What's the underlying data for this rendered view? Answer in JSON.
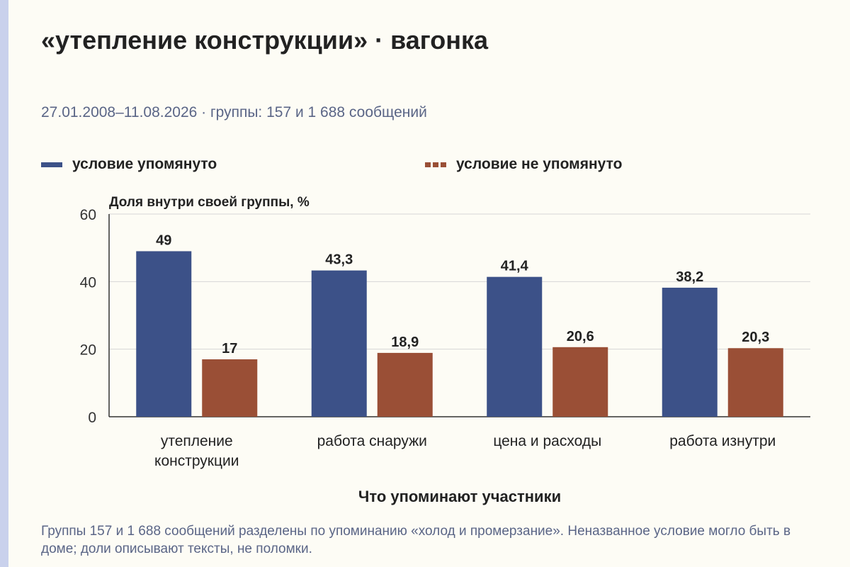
{
  "title": "«утепление конструкции» · вагонка",
  "subtitle": "27.01.2008–11.08.2026 · группы: 157 и 1 688 сообщений",
  "footnote": "Группы 157 и 1 688 сообщений разделены по упоминанию «холод и промерзание». Неназванное условие могло быть в доме; доли описывают тексты, не поломки.",
  "colors": {
    "series_1": "#3c5188",
    "series_2": "#9a4f36"
  },
  "chart_data": {
    "type": "bar",
    "ylabel": "Доля внутри своей группы, %",
    "xlabel": "Что упоминают участники",
    "ylim": [
      0,
      60
    ],
    "yticks": [
      0,
      20,
      40,
      60
    ],
    "categories": [
      [
        "утепление",
        "конструкции"
      ],
      [
        "работа снаружи"
      ],
      [
        "цена и расходы"
      ],
      [
        "работа изнутри"
      ]
    ],
    "series": [
      {
        "name": "условие упомянуто",
        "values": [
          49,
          43.3,
          41.4,
          38.2
        ],
        "labels": [
          "49",
          "43,3",
          "41,4",
          "38,2"
        ]
      },
      {
        "name": "условие не упомянуто",
        "values": [
          17,
          18.9,
          20.6,
          20.3
        ],
        "labels": [
          "17",
          "18,9",
          "20,6",
          "20,3"
        ]
      }
    ],
    "grid": true,
    "legend": "top"
  }
}
